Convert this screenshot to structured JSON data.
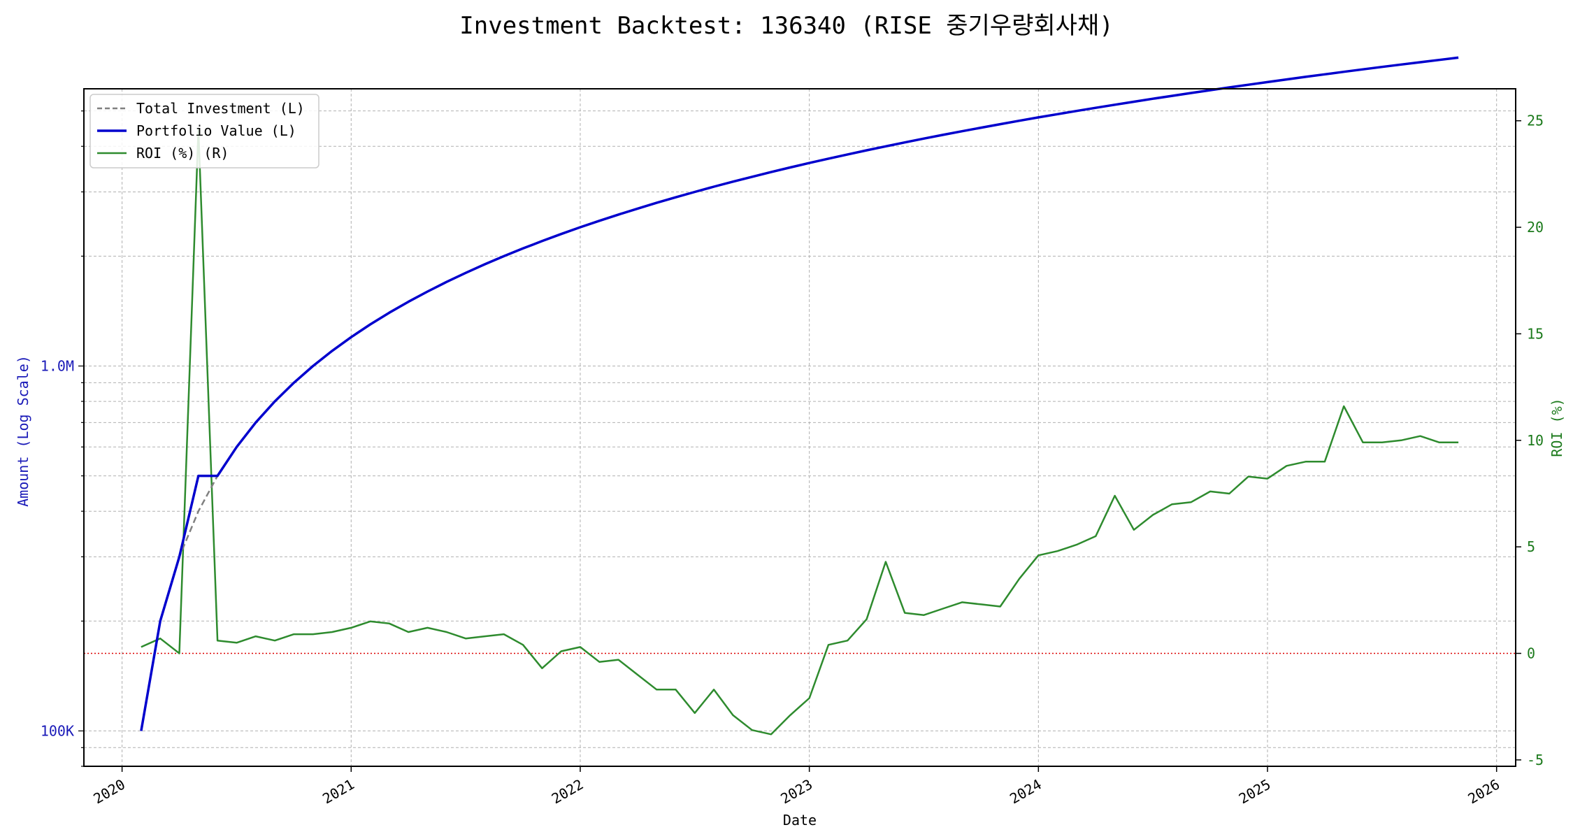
{
  "chart_data": {
    "type": "line",
    "title": "Investment Backtest: 136340 (RISE 중기우량회사채)",
    "xlabel": "Date",
    "ylabel_left": "Amount (Log Scale)",
    "ylabel_right": "ROI (%)",
    "x_ticks": [
      "2020",
      "2021",
      "2022",
      "2023",
      "2024",
      "2025",
      "2026"
    ],
    "y_left_ticks": [
      "100K",
      "1.0M"
    ],
    "y_right_ticks": [
      "-5",
      "0",
      "5",
      "10",
      "15",
      "20",
      "25"
    ],
    "y_left_scale": "log",
    "y_left_range": [
      80000,
      5750000
    ],
    "y_right_range": [
      -5.3,
      26.5
    ],
    "x_range": [
      "2019-11-01",
      "2026-02-01"
    ],
    "grid": true,
    "legend_position": "top-left",
    "colors": {
      "total_investment": "#808080",
      "portfolio_value": "#0000cd",
      "roi": "#2e8b2e",
      "zero_line": "#dd0000",
      "left_axis": "#1a1ab8",
      "right_axis": "#1c7a1c"
    },
    "series": [
      {
        "name": "Total Investment (L)",
        "axis": "left",
        "dates": [
          "2020-02",
          "2020-03",
          "2020-04",
          "2020-05",
          "2020-06",
          "2020-07",
          "2020-08",
          "2020-09",
          "2020-10",
          "2020-11",
          "2020-12",
          "2021-01",
          "2021-02",
          "2021-03",
          "2021-04",
          "2021-05",
          "2021-06",
          "2021-07",
          "2021-08",
          "2021-09",
          "2021-10",
          "2021-11",
          "2021-12",
          "2022-01",
          "2022-02",
          "2022-03",
          "2022-04",
          "2022-05",
          "2022-06",
          "2022-07",
          "2022-08",
          "2022-09",
          "2022-10",
          "2022-11",
          "2022-12",
          "2023-01",
          "2023-02",
          "2023-03",
          "2023-04",
          "2023-05",
          "2023-06",
          "2023-07",
          "2023-08",
          "2023-09",
          "2023-10",
          "2023-11",
          "2023-12",
          "2024-01",
          "2024-02",
          "2024-03",
          "2024-04",
          "2024-05",
          "2024-06",
          "2024-07",
          "2024-08",
          "2024-09",
          "2024-10",
          "2024-11",
          "2024-12",
          "2025-01",
          "2025-02",
          "2025-03",
          "2025-04",
          "2025-05",
          "2025-06",
          "2025-07",
          "2025-08",
          "2025-09",
          "2025-10",
          "2025-11"
        ],
        "values": [
          100000,
          200000,
          300000,
          400000,
          500000,
          600000,
          700000,
          800000,
          900000,
          1000000,
          1100000,
          1200000,
          1300000,
          1400000,
          1500000,
          1600000,
          1700000,
          1800000,
          1900000,
          2000000,
          2100000,
          2200000,
          2300000,
          2400000,
          2500000,
          2600000,
          2700000,
          2800000,
          2900000,
          3000000,
          3100000,
          3200000,
          3300000,
          3400000,
          3500000,
          3600000,
          3700000,
          3800000,
          3900000,
          4000000,
          4100000,
          4200000,
          4300000,
          4400000,
          4500000,
          4600000,
          4700000,
          4800000,
          4900000,
          5000000,
          5100000,
          5200000,
          5300000,
          5400000,
          5500000,
          5600000,
          5700000,
          5800000,
          5900000,
          6000000,
          6100000,
          6200000,
          6300000,
          6400000,
          6500000,
          6600000,
          6700000,
          6800000,
          6900000,
          7000000
        ]
      },
      {
        "name": "Portfolio Value (L)",
        "axis": "left",
        "dates": [
          "2020-02",
          "2020-03",
          "2020-04",
          "2020-05",
          "2020-06",
          "2020-07",
          "2020-08",
          "2020-09",
          "2020-10",
          "2020-11",
          "2020-12",
          "2021-01",
          "2021-02",
          "2021-03",
          "2021-04",
          "2021-05",
          "2021-06",
          "2021-07",
          "2021-08",
          "2021-09",
          "2021-10",
          "2021-11",
          "2021-12",
          "2022-01",
          "2022-02",
          "2022-03",
          "2022-04",
          "2022-05",
          "2022-06",
          "2022-07",
          "2022-08",
          "2022-09",
          "2022-10",
          "2022-11",
          "2022-12",
          "2023-01",
          "2023-02",
          "2023-03",
          "2023-04",
          "2023-05",
          "2023-06",
          "2023-07",
          "2023-08",
          "2023-09",
          "2023-10",
          "2023-11",
          "2023-12",
          "2024-01",
          "2024-02",
          "2024-03",
          "2024-04",
          "2024-05",
          "2024-06",
          "2024-07",
          "2024-08",
          "2024-09",
          "2024-10",
          "2024-11",
          "2024-12",
          "2025-01",
          "2025-02",
          "2025-03",
          "2025-04",
          "2025-05",
          "2025-06",
          "2025-07",
          "2025-08",
          "2025-09",
          "2025-10",
          "2025-11"
        ],
        "values": [
          100000,
          200000,
          300000,
          500000,
          500000,
          600000,
          700000,
          800000,
          900000,
          1000000,
          1100000,
          1200000,
          1300000,
          1400000,
          1500000,
          1600000,
          1700000,
          1800000,
          1900000,
          2000000,
          2100000,
          2200000,
          2300000,
          2400000,
          2500000,
          2600000,
          2700000,
          2800000,
          2900000,
          3000000,
          3100000,
          3200000,
          3300000,
          3400000,
          3500000,
          3600000,
          3700000,
          3800000,
          3900000,
          4000000,
          4100000,
          4200000,
          4300000,
          4400000,
          4500000,
          4600000,
          4700000,
          4800000,
          4900000,
          5000000,
          5100000,
          5200000,
          5300000,
          5400000,
          5500000,
          5600000,
          5700000,
          5800000,
          5900000,
          6000000,
          6100000,
          6200000,
          6300000,
          6400000,
          6500000,
          6600000,
          6700000,
          6800000,
          6900000,
          7000000
        ]
      },
      {
        "name": "ROI (%) (R)",
        "axis": "right",
        "dates": [
          "2020-02",
          "2020-03",
          "2020-04",
          "2020-05",
          "2020-06",
          "2020-07",
          "2020-08",
          "2020-09",
          "2020-10",
          "2020-11",
          "2020-12",
          "2021-01",
          "2021-02",
          "2021-03",
          "2021-04",
          "2021-05",
          "2021-06",
          "2021-07",
          "2021-08",
          "2021-09",
          "2021-10",
          "2021-11",
          "2021-12",
          "2022-01",
          "2022-02",
          "2022-03",
          "2022-04",
          "2022-05",
          "2022-06",
          "2022-07",
          "2022-08",
          "2022-09",
          "2022-10",
          "2022-11",
          "2022-12",
          "2023-01",
          "2023-02",
          "2023-03",
          "2023-04",
          "2023-05",
          "2023-06",
          "2023-07",
          "2023-08",
          "2023-09",
          "2023-10",
          "2023-11",
          "2023-12",
          "2024-01",
          "2024-02",
          "2024-03",
          "2024-04",
          "2024-05",
          "2024-06",
          "2024-07",
          "2024-08",
          "2024-09",
          "2024-10",
          "2024-11",
          "2024-12",
          "2025-01",
          "2025-02",
          "2025-03",
          "2025-04",
          "2025-05",
          "2025-06",
          "2025-07",
          "2025-08",
          "2025-09",
          "2025-10",
          "2025-11"
        ],
        "values": [
          0.3,
          0.7,
          0.0,
          24.6,
          0.6,
          0.5,
          0.8,
          0.6,
          0.9,
          0.9,
          1.0,
          1.2,
          1.5,
          1.4,
          1.0,
          1.2,
          1.0,
          0.7,
          0.8,
          0.9,
          0.4,
          -0.7,
          0.1,
          0.3,
          -0.4,
          -0.3,
          -1.0,
          -1.7,
          -1.7,
          -2.8,
          -1.7,
          -2.9,
          -3.6,
          -3.8,
          -2.9,
          -2.1,
          0.4,
          0.6,
          1.6,
          4.3,
          1.9,
          1.8,
          2.1,
          2.4,
          2.3,
          2.2,
          3.5,
          4.6,
          4.8,
          5.1,
          5.5,
          7.4,
          5.8,
          6.5,
          7.0,
          7.1,
          7.6,
          7.5,
          8.3,
          8.2,
          8.8,
          9.0,
          9.0,
          11.6,
          9.9,
          9.9,
          10.0,
          10.2,
          9.9,
          9.9
        ]
      }
    ]
  }
}
